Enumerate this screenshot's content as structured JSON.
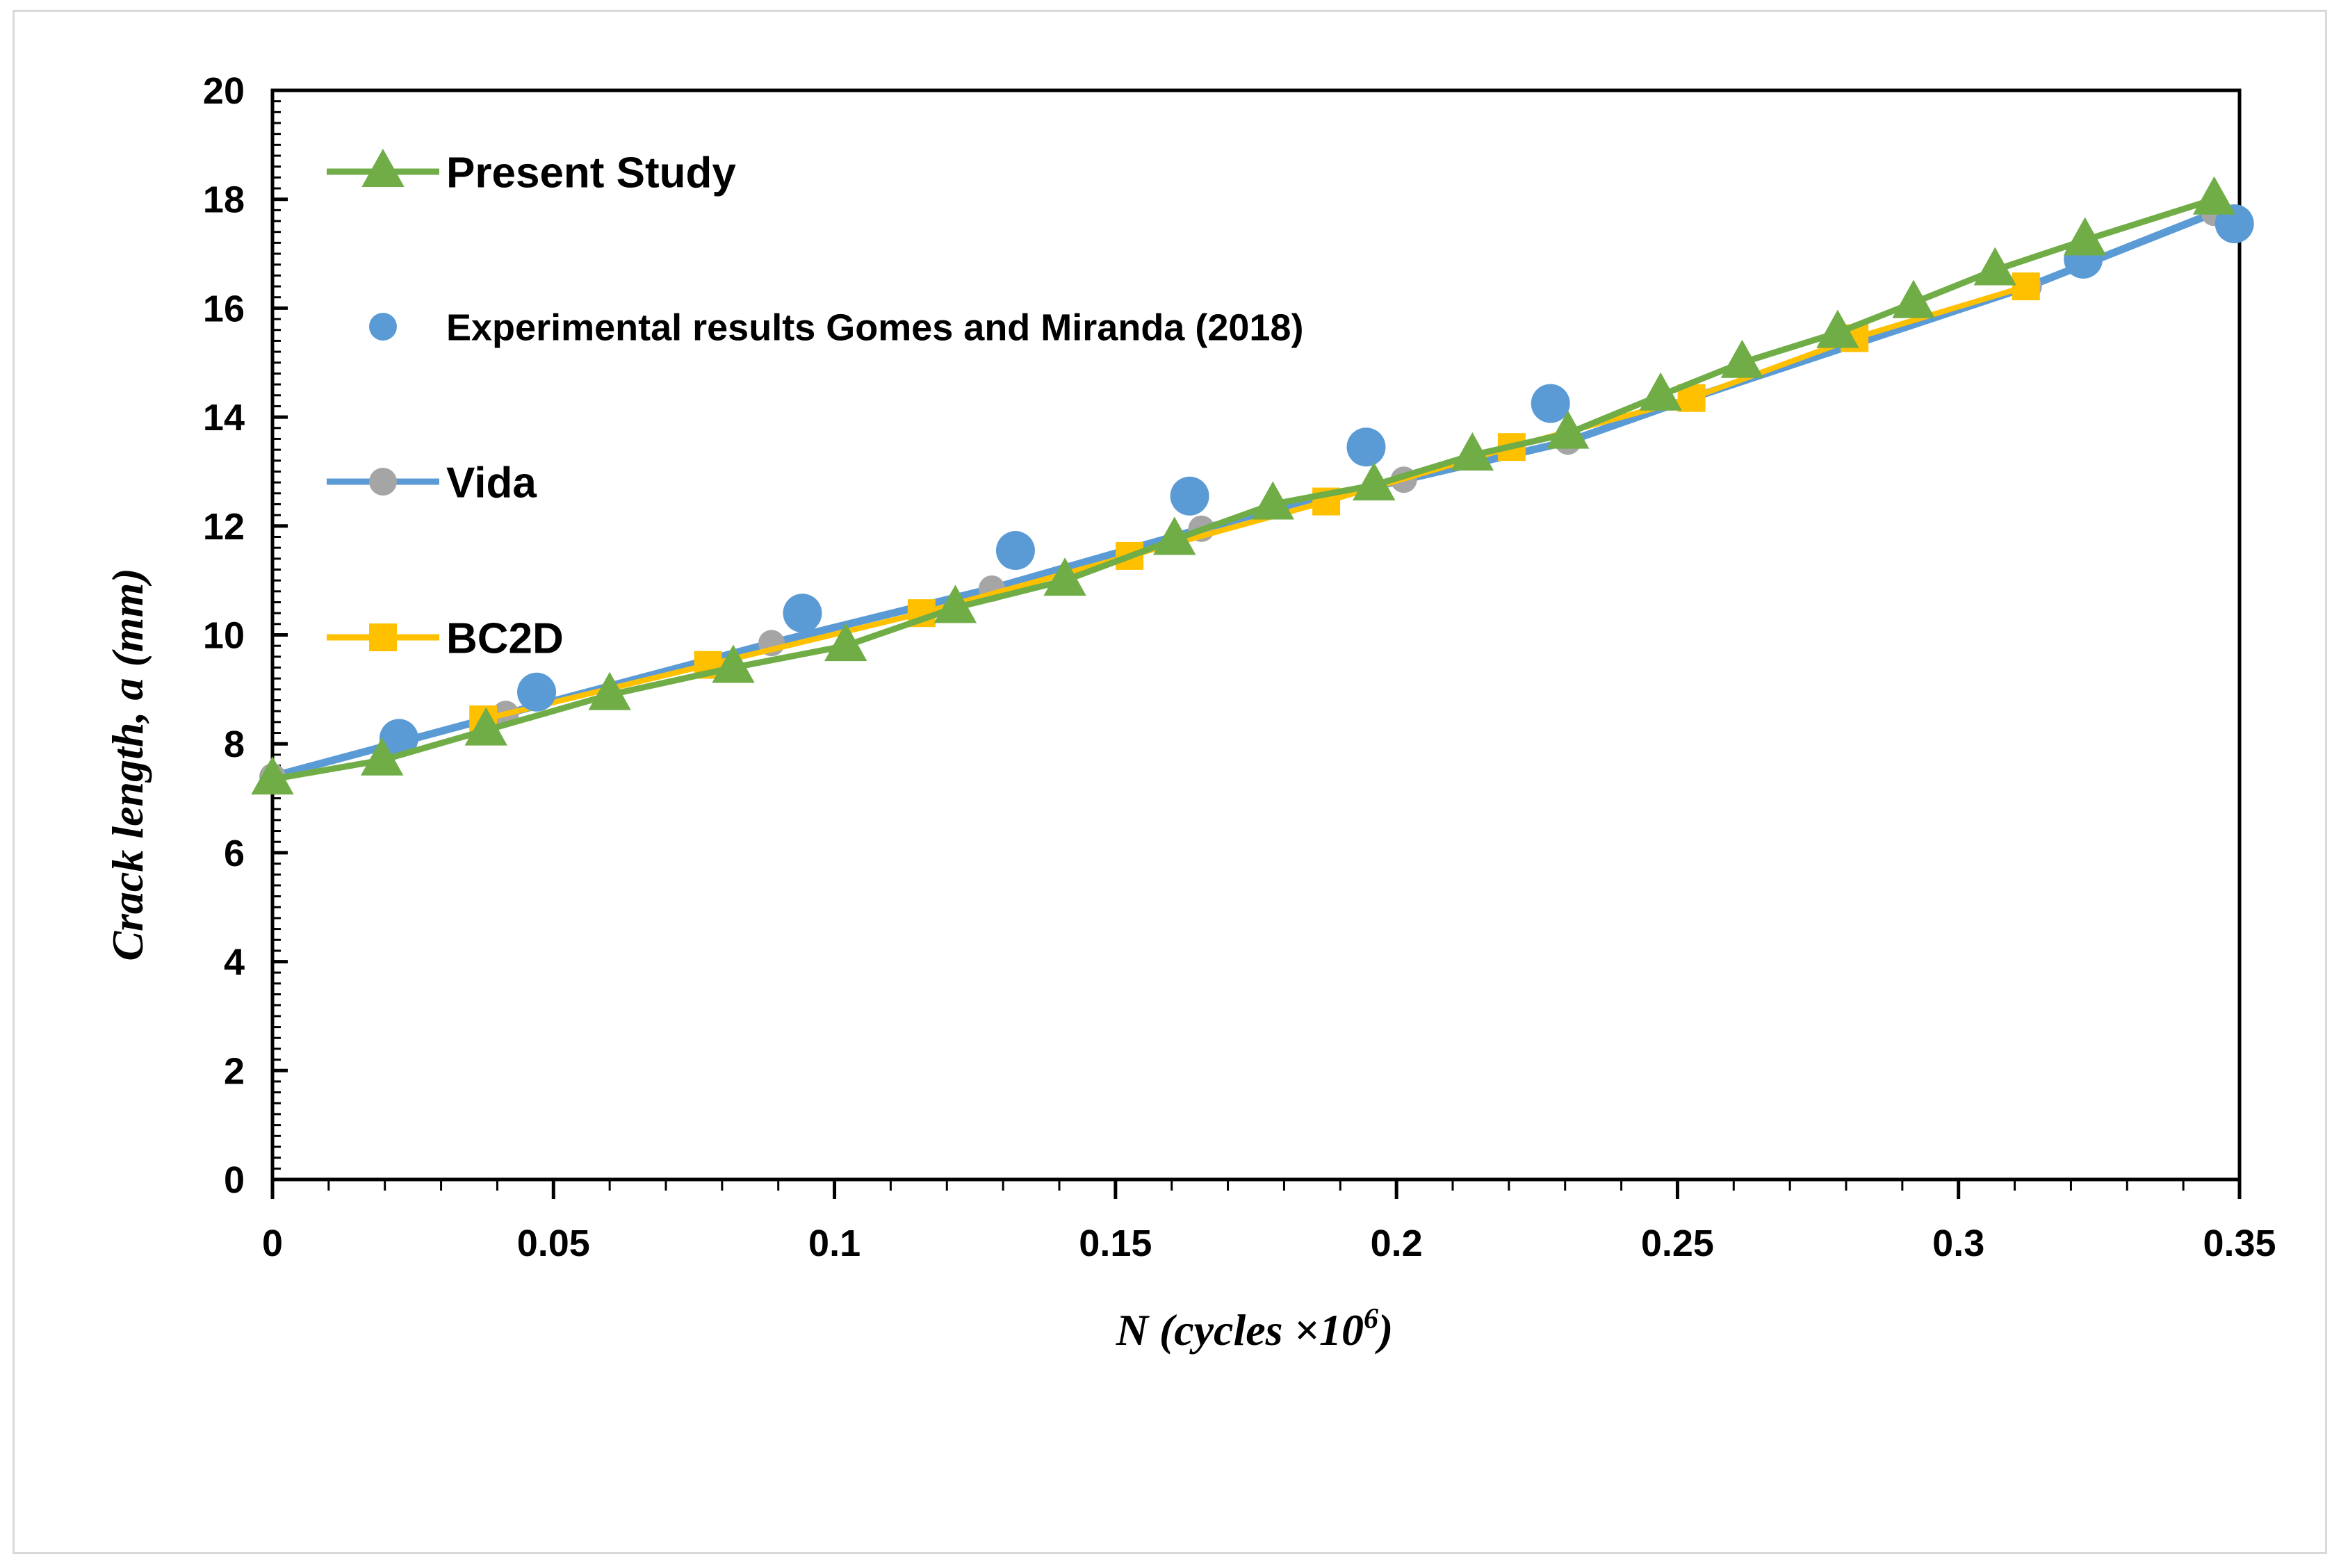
{
  "chart_data": {
    "type": "line",
    "title": "",
    "xlabel": "N (cycles ×10",
    "xlabel_sup": "6",
    "xlabel_close": ")",
    "ylabel": "Crack length, a (mm)",
    "xlim": [
      0,
      0.35
    ],
    "ylim": [
      0,
      20
    ],
    "x_ticks": [
      "0",
      "0.05",
      "0.1",
      "0.15",
      "0.2",
      "0.25",
      "0.3",
      "0.35"
    ],
    "y_ticks": [
      "0",
      "2",
      "4",
      "6",
      "8",
      "10",
      "12",
      "14",
      "16",
      "18",
      "20"
    ],
    "grid": false,
    "legend_position": "top-left inside",
    "series": [
      {
        "name": "Present Study",
        "color": "#70ad47",
        "marker": "triangle",
        "x": [
          0,
          0.0195,
          0.038,
          0.06,
          0.082,
          0.102,
          0.1215,
          0.141,
          0.1605,
          0.178,
          0.196,
          0.2135,
          0.2305,
          0.247,
          0.2615,
          0.2785,
          0.292,
          0.3065,
          0.3225,
          0.3455
        ],
        "y": [
          7.35,
          7.7,
          8.25,
          8.9,
          9.4,
          9.8,
          10.5,
          11.0,
          11.75,
          12.4,
          12.75,
          13.3,
          13.7,
          14.4,
          15.0,
          15.55,
          16.1,
          16.7,
          17.25,
          18.0
        ]
      },
      {
        "name": "Experimental results Gomes and Miranda (2018)",
        "color": "#5b9bd5",
        "marker": "circle",
        "x": [
          0.0225,
          0.047,
          0.0943,
          0.1322,
          0.1632,
          0.1946,
          0.2274,
          0.3222,
          0.3491
        ],
        "y": [
          8.1,
          8.95,
          10.4,
          11.55,
          12.55,
          13.45,
          14.25,
          16.9,
          17.55
        ]
      },
      {
        "name": "Vida",
        "color": "#5b9bd5",
        "marker_color": "#a5a5a5",
        "marker": "circle",
        "x": [
          0,
          0.0415,
          0.0888,
          0.128,
          0.1653,
          0.2013,
          0.2305,
          0.2525,
          0.3125,
          0.3455
        ],
        "y": [
          7.4,
          8.55,
          9.85,
          10.85,
          11.95,
          12.85,
          13.55,
          14.35,
          16.4,
          17.75
        ]
      },
      {
        "name": "BC2D",
        "color": "#ffc000",
        "marker": "square",
        "x": [
          0.0375,
          0.0775,
          0.1155,
          0.1525,
          0.1875,
          0.2205,
          0.2525,
          0.2815,
          0.312
        ],
        "y": [
          8.45,
          9.45,
          10.4,
          11.45,
          12.45,
          13.45,
          14.35,
          15.45,
          16.4
        ]
      }
    ]
  }
}
